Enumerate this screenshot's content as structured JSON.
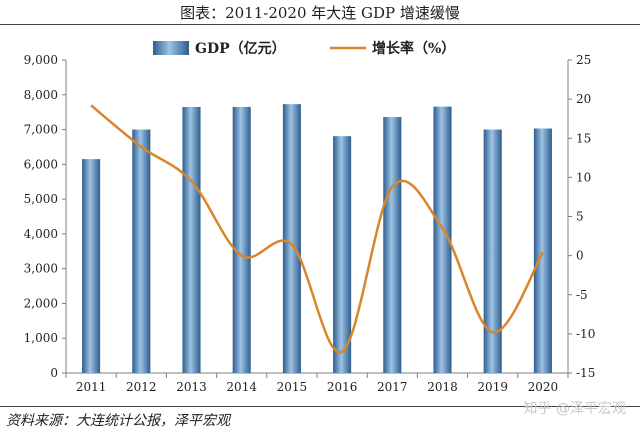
{
  "header": {
    "title": "图表：2011-2020 年大连 GDP 增速缓慢"
  },
  "footer": {
    "source": "资料来源：大连统计公报，泽平宏观",
    "watermark": "知乎 @泽平宏观"
  },
  "colors": {
    "bar": "#4f81bd",
    "bar_light": "#9dc3e6",
    "bar_dark": "#2e5d8c",
    "line": "#d9862a"
  },
  "chart_data": {
    "type": "bar",
    "title": "",
    "categories": [
      "2011",
      "2012",
      "2013",
      "2014",
      "2015",
      "2016",
      "2017",
      "2018",
      "2019",
      "2020"
    ],
    "series": [
      {
        "name": "GDP（亿元）",
        "type": "bar",
        "axis": "left",
        "values": [
          6150,
          7000,
          7650,
          7650,
          7730,
          6810,
          7360,
          7660,
          7000,
          7030
        ]
      },
      {
        "name": "增长率（%）",
        "type": "line",
        "axis": "right",
        "smooth": true,
        "values": [
          19.2,
          13.9,
          9.5,
          0.0,
          1.4,
          -12.3,
          8.8,
          3.5,
          -9.8,
          0.4
        ]
      }
    ],
    "y_left": {
      "lim": [
        0,
        9000
      ],
      "ticks": [
        "0",
        "1,000",
        "2,000",
        "3,000",
        "4,000",
        "5,000",
        "6,000",
        "7,000",
        "8,000",
        "9,000"
      ]
    },
    "y_right": {
      "lim": [
        -15,
        25
      ],
      "ticks": [
        "-15",
        "-10",
        "-5",
        "0",
        "5",
        "10",
        "15",
        "20",
        "25"
      ]
    },
    "legend_placement": "top-center",
    "grid": false
  }
}
